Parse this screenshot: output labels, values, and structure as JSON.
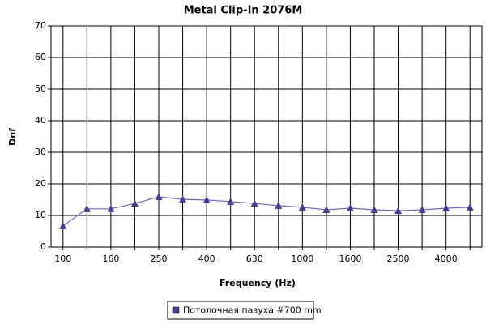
{
  "chart_data": {
    "type": "line",
    "title": "Metal Clip-In 2076M",
    "x_label": "Frequency (Hz)",
    "y_label": "Dnf",
    "categories": [
      "100",
      null,
      "160",
      null,
      "250",
      null,
      "400",
      null,
      "630",
      null,
      "1000",
      null,
      "1600",
      null,
      "2500",
      null,
      "4000",
      null
    ],
    "series": [
      {
        "name": "Потолочная пазуха #700 mm",
        "color": "#483d8b",
        "values": [
          6.7,
          12.1,
          12.1,
          13.8,
          15.9,
          15.1,
          14.9,
          14.4,
          13.8,
          13.1,
          12.6,
          11.8,
          12.3,
          11.8,
          11.5,
          11.8,
          12.3,
          12.6
        ]
      }
    ],
    "ylim": [
      0,
      70
    ],
    "yticks": [
      0,
      10,
      20,
      30,
      40,
      50,
      60,
      70
    ],
    "grid": true,
    "legend": "bottom"
  }
}
